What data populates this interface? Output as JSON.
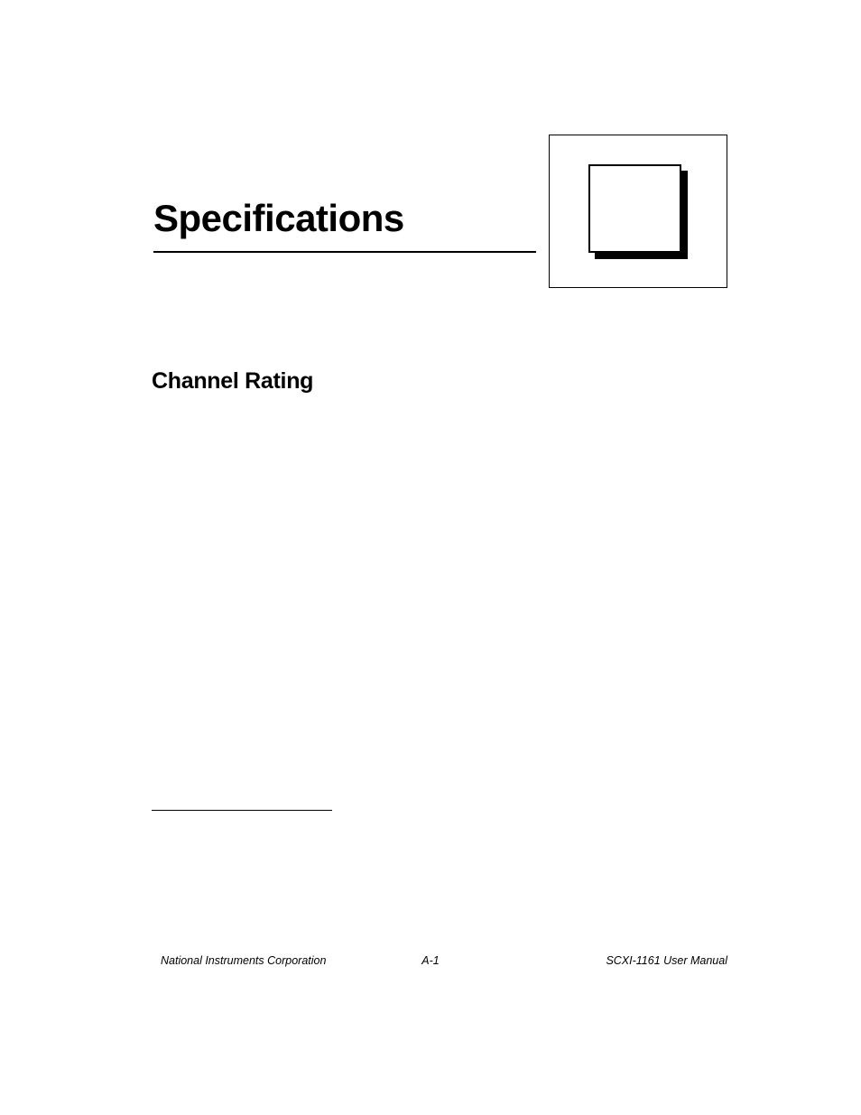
{
  "header": {
    "title": "Specifications"
  },
  "section": {
    "heading": "Channel Rating"
  },
  "footer": {
    "left": "National Instruments Corporation",
    "center": "A-1",
    "right": "SCXI-1161 User Manual"
  },
  "colors": {
    "background": "#ffffff",
    "text": "#000000",
    "border": "#000000"
  }
}
